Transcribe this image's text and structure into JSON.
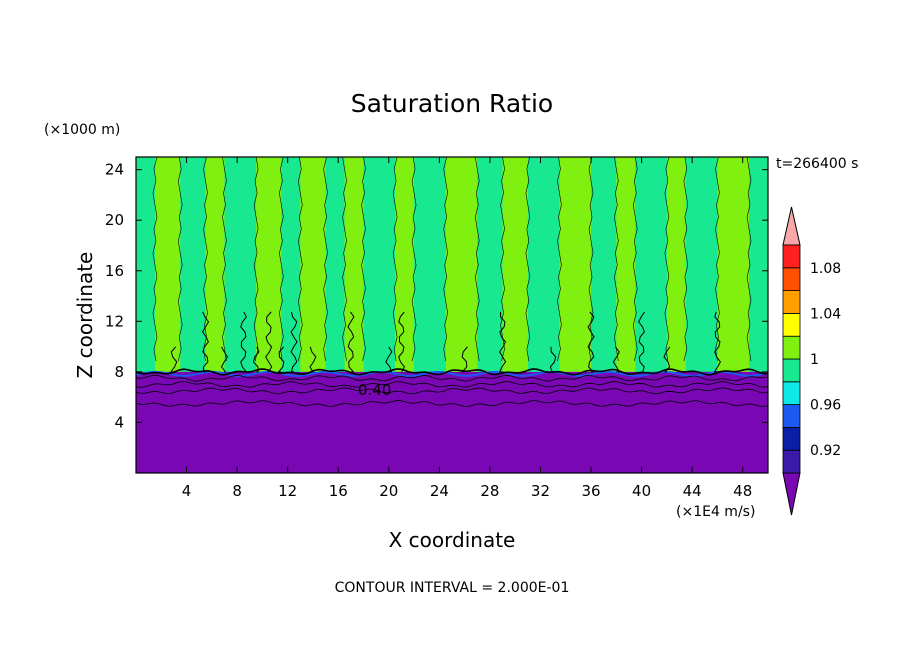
{
  "chart_data": {
    "type": "heatmap",
    "title": "Saturation Ratio",
    "xlabel": "X coordinate",
    "ylabel": "Z coordinate",
    "x_unit": "(×1E4 m/s)",
    "y_unit": "(×1000 m)",
    "time_label": "t=266400 s",
    "contour_interval_label": "CONTOUR INTERVAL = 2.000E-01",
    "contour_label": "0.40",
    "xlim": [
      0,
      50
    ],
    "ylim": [
      0,
      25
    ],
    "x_ticks": [
      4,
      8,
      12,
      16,
      20,
      24,
      28,
      32,
      36,
      40,
      44,
      48
    ],
    "y_ticks": [
      4,
      8,
      12,
      16,
      20,
      24
    ],
    "boundary_layer_top": 8,
    "upper_bands_x": [
      0,
      1.5,
      3.5,
      5.5,
      7,
      9.5,
      11.5,
      13,
      15,
      16.5,
      18,
      20.5,
      22,
      24.5,
      27,
      29,
      31,
      33.5,
      36,
      38,
      39.5,
      42,
      43.5,
      46,
      48.5,
      50
    ],
    "upper_bands_level": [
      3,
      4,
      3,
      4,
      3,
      4,
      3,
      4,
      3,
      4,
      3,
      4,
      3,
      4,
      3,
      4,
      3,
      4,
      3,
      4,
      3,
      4,
      3,
      4,
      3
    ],
    "levels": [
      {
        "label": "",
        "color": "#7a07b4"
      },
      {
        "label": "0.92",
        "color": "#3a1aa8"
      },
      {
        "label": "",
        "color": "#0a1ea6"
      },
      {
        "label": "0.96",
        "color": "#1a5af0"
      },
      {
        "label": "",
        "color": "#10e8e8"
      },
      {
        "label": "1",
        "color": "#18e890"
      },
      {
        "label": "",
        "color": "#80f010"
      },
      {
        "label": "1.04",
        "color": "#ffff00"
      },
      {
        "label": "",
        "color": "#ffa000"
      },
      {
        "label": "1.08",
        "color": "#ff5000"
      },
      {
        "label": "",
        "color": "#ff2020"
      },
      {
        "label": "",
        "color": "#f8a8a8"
      }
    ],
    "colors": {
      "frame": "#000000",
      "contour": "#000000"
    }
  }
}
